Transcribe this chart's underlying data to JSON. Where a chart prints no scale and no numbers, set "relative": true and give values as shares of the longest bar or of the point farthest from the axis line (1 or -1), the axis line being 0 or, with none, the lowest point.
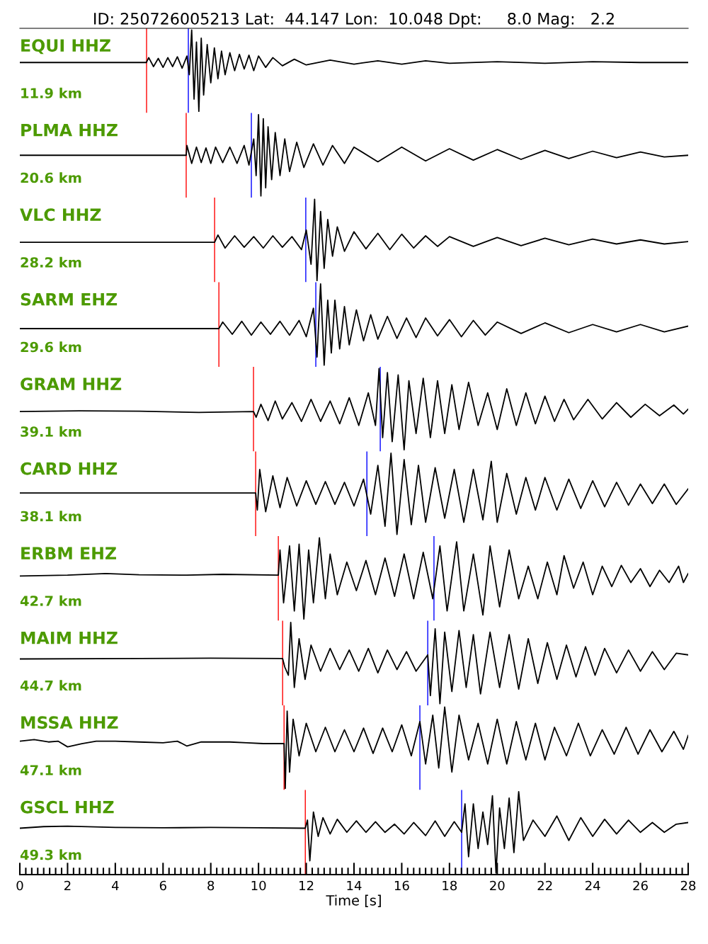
{
  "chart_data": [
    {
      "type": "line",
      "title": "ID: 250726005213 Lat:  44.147 Lon:  10.048 Dpt:     8.0 Mag:   2.2",
      "annotations": [
        "EQUI HHZ",
        "11.9 km"
      ],
      "relative": true,
      "xlim": [
        0,
        28
      ],
      "tick_labels": false,
      "ref_lines": [
        {
          "axis": "x",
          "value": 5.31,
          "color": "#ff0000"
        },
        {
          "axis": "x",
          "value": 7.06,
          "color": "#0000ff"
        }
      ],
      "series": [
        {
          "color": "#000000",
          "x": [
            0,
            5.0,
            5.3,
            5.4,
            5.6,
            5.8,
            6.0,
            6.2,
            6.4,
            6.6,
            6.8,
            7.0,
            7.1,
            7.2,
            7.3,
            7.4,
            7.5,
            7.6,
            7.7,
            7.85,
            8.0,
            8.15,
            8.3,
            8.45,
            8.6,
            8.8,
            9.0,
            9.2,
            9.4,
            9.6,
            9.8,
            10.0,
            10.3,
            10.6,
            11.0,
            11.5,
            12.0,
            13,
            14,
            15,
            16,
            17,
            18,
            20,
            22,
            24,
            26,
            28
          ],
          "values": [
            0.6,
            0.6,
            0.6,
            0.66,
            0.55,
            0.65,
            0.54,
            0.66,
            0.55,
            0.67,
            0.53,
            0.68,
            0.45,
            1.0,
            0.15,
            0.85,
            0.0,
            0.9,
            0.2,
            0.82,
            0.35,
            0.78,
            0.4,
            0.74,
            0.45,
            0.72,
            0.5,
            0.7,
            0.52,
            0.69,
            0.5,
            0.68,
            0.54,
            0.66,
            0.56,
            0.64,
            0.57,
            0.63,
            0.58,
            0.62,
            0.58,
            0.62,
            0.59,
            0.61,
            0.59,
            0.61,
            0.6,
            0.6
          ]
        }
      ]
    },
    {
      "type": "line",
      "annotations": [
        "PLMA HHZ",
        "20.6 km"
      ],
      "relative": true,
      "xlim": [
        0,
        28
      ],
      "tick_labels": false,
      "ref_lines": [
        {
          "axis": "x",
          "value": 6.97,
          "color": "#ff0000"
        },
        {
          "axis": "x",
          "value": 9.7,
          "color": "#0000ff"
        }
      ],
      "series": [
        {
          "color": "#000000",
          "x": [
            0,
            6.97,
            7.0,
            7.2,
            7.4,
            7.6,
            7.8,
            8.0,
            8.2,
            8.5,
            8.8,
            9.1,
            9.4,
            9.6,
            9.8,
            9.9,
            10.0,
            10.1,
            10.2,
            10.3,
            10.4,
            10.55,
            10.7,
            10.9,
            11.1,
            11.3,
            11.6,
            11.9,
            12.3,
            12.7,
            13.1,
            13.6,
            14,
            15,
            16,
            17,
            18,
            19,
            20,
            21,
            22,
            23,
            24,
            25,
            26,
            27,
            28
          ],
          "values": [
            0.5,
            0.5,
            0.62,
            0.4,
            0.6,
            0.41,
            0.59,
            0.4,
            0.6,
            0.41,
            0.6,
            0.4,
            0.62,
            0.38,
            0.7,
            0.25,
            1.0,
            0.0,
            0.95,
            0.1,
            0.85,
            0.2,
            0.78,
            0.25,
            0.7,
            0.3,
            0.66,
            0.35,
            0.64,
            0.38,
            0.62,
            0.4,
            0.6,
            0.42,
            0.6,
            0.43,
            0.58,
            0.44,
            0.57,
            0.45,
            0.56,
            0.46,
            0.55,
            0.47,
            0.54,
            0.48,
            0.5
          ]
        }
      ]
    },
    {
      "type": "line",
      "annotations": [
        "VLC HHZ",
        "28.2 km"
      ],
      "relative": true,
      "xlim": [
        0,
        28
      ],
      "tick_labels": false,
      "ref_lines": [
        {
          "axis": "x",
          "value": 8.16,
          "color": "#ff0000"
        },
        {
          "axis": "x",
          "value": 11.98,
          "color": "#0000ff"
        }
      ],
      "series": [
        {
          "color": "#000000",
          "x": [
            0,
            8.16,
            8.3,
            8.6,
            9.0,
            9.4,
            9.8,
            10.2,
            10.6,
            11.0,
            11.4,
            11.8,
            12.0,
            12.2,
            12.35,
            12.45,
            12.6,
            12.75,
            12.9,
            13.1,
            13.3,
            13.6,
            14,
            14.5,
            15,
            15.5,
            16,
            16.5,
            17,
            17.5,
            18,
            19,
            20,
            21,
            22,
            23,
            24,
            25,
            26,
            27,
            28
          ],
          "values": [
            0.47,
            0.47,
            0.56,
            0.4,
            0.55,
            0.41,
            0.54,
            0.4,
            0.55,
            0.41,
            0.54,
            0.38,
            0.62,
            0.2,
            1.0,
            0.0,
            0.85,
            0.15,
            0.75,
            0.3,
            0.66,
            0.36,
            0.6,
            0.39,
            0.58,
            0.38,
            0.57,
            0.4,
            0.55,
            0.42,
            0.54,
            0.42,
            0.53,
            0.43,
            0.52,
            0.44,
            0.51,
            0.45,
            0.5,
            0.45,
            0.48
          ]
        }
      ]
    },
    {
      "type": "line",
      "annotations": [
        "SARM EHZ",
        "29.6 km"
      ],
      "relative": true,
      "xlim": [
        0,
        28
      ],
      "tick_labels": false,
      "ref_lines": [
        {
          "axis": "x",
          "value": 8.34,
          "color": "#ff0000"
        },
        {
          "axis": "x",
          "value": 12.4,
          "color": "#0000ff"
        }
      ],
      "series": [
        {
          "color": "#000000",
          "x": [
            0,
            8.34,
            8.5,
            8.9,
            9.3,
            9.7,
            10.1,
            10.5,
            10.9,
            11.3,
            11.7,
            12.0,
            12.3,
            12.45,
            12.6,
            12.75,
            12.9,
            13.05,
            13.2,
            13.4,
            13.6,
            13.8,
            14.1,
            14.4,
            14.7,
            15.0,
            15.4,
            15.8,
            16.2,
            16.6,
            17.0,
            17.5,
            18,
            18.5,
            19,
            19.5,
            20,
            21,
            22,
            23,
            24,
            25,
            26,
            27,
            28
          ],
          "values": [
            0.45,
            0.45,
            0.53,
            0.38,
            0.54,
            0.37,
            0.53,
            0.38,
            0.54,
            0.37,
            0.55,
            0.35,
            0.7,
            0.1,
            1.0,
            0.0,
            0.8,
            0.15,
            0.8,
            0.2,
            0.72,
            0.25,
            0.68,
            0.3,
            0.62,
            0.32,
            0.6,
            0.33,
            0.58,
            0.34,
            0.58,
            0.36,
            0.56,
            0.35,
            0.55,
            0.37,
            0.53,
            0.39,
            0.52,
            0.4,
            0.5,
            0.41,
            0.5,
            0.41,
            0.48
          ]
        }
      ]
    },
    {
      "type": "line",
      "annotations": [
        "GRAM HHZ",
        "39.1 km"
      ],
      "relative": true,
      "xlim": [
        0,
        28
      ],
      "tick_labels": false,
      "ref_lines": [
        {
          "axis": "x",
          "value": 9.79,
          "color": "#ff0000"
        },
        {
          "axis": "x",
          "value": 15.1,
          "color": "#0000ff"
        }
      ],
      "series": [
        {
          "color": "#000000",
          "x": [
            0,
            2.5,
            5,
            7.5,
            9.79,
            9.9,
            10.1,
            10.4,
            10.7,
            11.0,
            11.4,
            11.8,
            12.2,
            12.6,
            13.0,
            13.4,
            13.8,
            14.2,
            14.6,
            14.9,
            15.05,
            15.2,
            15.4,
            15.6,
            15.85,
            16.1,
            16.3,
            16.6,
            16.9,
            17.2,
            17.5,
            17.8,
            18.1,
            18.4,
            18.8,
            19.2,
            19.6,
            20.0,
            20.4,
            20.8,
            21.2,
            21.6,
            22.0,
            22.4,
            22.8,
            23.2,
            23.8,
            24.4,
            25.0,
            25.6,
            26.2,
            26.8,
            27.4,
            27.8,
            28
          ],
          "values": [
            0.47,
            0.48,
            0.475,
            0.46,
            0.47,
            0.4,
            0.56,
            0.36,
            0.6,
            0.38,
            0.58,
            0.35,
            0.62,
            0.35,
            0.6,
            0.32,
            0.64,
            0.3,
            0.7,
            0.3,
            1.0,
            0.15,
            0.95,
            0.1,
            0.92,
            0.0,
            0.85,
            0.2,
            0.88,
            0.15,
            0.85,
            0.2,
            0.8,
            0.25,
            0.83,
            0.3,
            0.7,
            0.25,
            0.75,
            0.3,
            0.7,
            0.32,
            0.66,
            0.35,
            0.62,
            0.37,
            0.62,
            0.38,
            0.58,
            0.4,
            0.56,
            0.42,
            0.55,
            0.44,
            0.5
          ]
        }
      ]
    },
    {
      "type": "line",
      "annotations": [
        "CARD HHZ",
        "38.1 km"
      ],
      "relative": true,
      "xlim": [
        0,
        28
      ],
      "tick_labels": false,
      "ref_lines": [
        {
          "axis": "x",
          "value": 9.88,
          "color": "#ff0000"
        },
        {
          "axis": "x",
          "value": 14.54,
          "color": "#0000ff"
        }
      ],
      "series": [
        {
          "color": "#000000",
          "x": [
            0,
            9.88,
            9.95,
            10.05,
            10.3,
            10.6,
            10.9,
            11.2,
            11.6,
            12.0,
            12.4,
            12.8,
            13.2,
            13.6,
            14.0,
            14.4,
            14.7,
            15.0,
            15.3,
            15.55,
            15.8,
            16.1,
            16.4,
            16.7,
            17.0,
            17.4,
            17.8,
            18.2,
            18.6,
            19.0,
            19.4,
            19.75,
            20.0,
            20.4,
            20.8,
            21.2,
            21.6,
            22.0,
            22.5,
            23,
            23.5,
            24,
            24.5,
            25,
            25.5,
            26,
            26.5,
            27,
            27.5,
            28
          ],
          "values": [
            0.51,
            0.51,
            0.3,
            0.8,
            0.28,
            0.72,
            0.33,
            0.7,
            0.35,
            0.66,
            0.37,
            0.65,
            0.37,
            0.64,
            0.35,
            0.68,
            0.25,
            0.85,
            0.1,
            1.0,
            0.0,
            0.92,
            0.12,
            0.85,
            0.15,
            0.82,
            0.2,
            0.8,
            0.15,
            0.8,
            0.18,
            0.9,
            0.15,
            0.75,
            0.25,
            0.7,
            0.3,
            0.7,
            0.3,
            0.68,
            0.32,
            0.66,
            0.34,
            0.64,
            0.36,
            0.62,
            0.38,
            0.62,
            0.37,
            0.56
          ]
        }
      ]
    },
    {
      "type": "line",
      "annotations": [
        "ERBM EHZ",
        "42.7 km"
      ],
      "relative": true,
      "xlim": [
        0,
        28
      ],
      "tick_labels": false,
      "ref_lines": [
        {
          "axis": "x",
          "value": 10.83,
          "color": "#ff0000"
        },
        {
          "axis": "x",
          "value": 17.35,
          "color": "#0000ff"
        }
      ],
      "series": [
        {
          "color": "#000000",
          "x": [
            0,
            2,
            3.6,
            5,
            7,
            8.5,
            10.83,
            10.9,
            11.05,
            11.3,
            11.5,
            11.7,
            11.9,
            12.1,
            12.3,
            12.55,
            12.8,
            13.0,
            13.3,
            13.7,
            14.1,
            14.5,
            14.9,
            15.3,
            15.7,
            16.1,
            16.5,
            16.9,
            17.3,
            17.6,
            17.9,
            18.3,
            18.6,
            19.0,
            19.4,
            19.7,
            20.1,
            20.5,
            20.9,
            21.3,
            21.7,
            22.1,
            22.5,
            22.8,
            23.2,
            23.6,
            24.0,
            24.4,
            24.8,
            25.2,
            25.6,
            26.0,
            26.4,
            26.8,
            27.2,
            27.6,
            27.8,
            28
          ],
          "values": [
            0.53,
            0.54,
            0.56,
            0.545,
            0.54,
            0.55,
            0.54,
            0.85,
            0.2,
            0.9,
            0.1,
            0.92,
            0.0,
            0.85,
            0.2,
            1.0,
            0.25,
            0.8,
            0.3,
            0.7,
            0.35,
            0.72,
            0.3,
            0.75,
            0.28,
            0.8,
            0.25,
            0.82,
            0.25,
            0.9,
            0.1,
            0.95,
            0.1,
            0.8,
            0.05,
            0.9,
            0.15,
            0.85,
            0.25,
            0.65,
            0.25,
            0.7,
            0.3,
            0.78,
            0.38,
            0.7,
            0.3,
            0.65,
            0.4,
            0.66,
            0.45,
            0.62,
            0.4,
            0.6,
            0.45,
            0.65,
            0.45,
            0.56
          ]
        }
      ]
    },
    {
      "type": "line",
      "annotations": [
        "MAIM HHZ",
        "44.7 km"
      ],
      "relative": true,
      "xlim": [
        0,
        28
      ],
      "tick_labels": false,
      "ref_lines": [
        {
          "axis": "x",
          "value": 11.01,
          "color": "#ff0000"
        },
        {
          "axis": "x",
          "value": 17.09,
          "color": "#0000ff"
        }
      ],
      "series": [
        {
          "color": "#000000",
          "x": [
            0,
            5,
            8,
            11.01,
            11.1,
            11.25,
            11.35,
            11.5,
            11.7,
            11.95,
            12.2,
            12.6,
            13.0,
            13.4,
            13.8,
            14.2,
            14.6,
            15.0,
            15.4,
            15.8,
            16.2,
            16.6,
            17.09,
            17.2,
            17.4,
            17.6,
            17.8,
            18.1,
            18.4,
            18.7,
            19.0,
            19.3,
            19.7,
            20.1,
            20.5,
            20.9,
            21.3,
            21.7,
            22.1,
            22.5,
            22.9,
            23.3,
            23.7,
            24.1,
            24.5,
            25,
            25.5,
            26,
            26.5,
            27,
            27.5,
            28
          ],
          "values": [
            0.55,
            0.555,
            0.56,
            0.555,
            0.45,
            0.35,
            1.0,
            0.2,
            0.8,
            0.3,
            0.72,
            0.4,
            0.68,
            0.42,
            0.66,
            0.4,
            0.68,
            0.38,
            0.66,
            0.42,
            0.64,
            0.4,
            0.6,
            0.1,
            0.92,
            0.0,
            0.88,
            0.15,
            0.9,
            0.2,
            0.85,
            0.12,
            0.88,
            0.2,
            0.85,
            0.18,
            0.8,
            0.25,
            0.75,
            0.3,
            0.72,
            0.33,
            0.7,
            0.35,
            0.68,
            0.38,
            0.66,
            0.4,
            0.64,
            0.42,
            0.62,
            0.6
          ]
        }
      ]
    },
    {
      "type": "line",
      "annotations": [
        "MSSA HHZ",
        "47.1 km"
      ],
      "relative": true,
      "xlim": [
        0,
        28
      ],
      "tick_labels": false,
      "ref_lines": [
        {
          "axis": "x",
          "value": 11.07,
          "color": "#ff0000"
        },
        {
          "axis": "x",
          "value": 16.76,
          "color": "#0000ff"
        }
      ],
      "series": [
        {
          "color": "#000000",
          "x": [
            0,
            0.6,
            1.2,
            1.6,
            2.0,
            2.6,
            3.2,
            4,
            5,
            6,
            6.6,
            7.0,
            7.6,
            8.2,
            8.8,
            9.5,
            10.2,
            11.07,
            11.12,
            11.2,
            11.3,
            11.45,
            11.7,
            12.0,
            12.4,
            12.8,
            13.2,
            13.6,
            14,
            14.4,
            14.8,
            15.2,
            15.6,
            16.0,
            16.4,
            16.76,
            17.0,
            17.3,
            17.55,
            17.8,
            18.1,
            18.4,
            18.8,
            19.2,
            19.6,
            20.0,
            20.4,
            20.8,
            21.2,
            21.6,
            22.0,
            22.4,
            22.9,
            23.4,
            23.9,
            24.4,
            24.9,
            25.4,
            25.9,
            26.4,
            26.9,
            27.4,
            27.8,
            28
          ],
          "values": [
            0.58,
            0.6,
            0.57,
            0.58,
            0.51,
            0.55,
            0.58,
            0.58,
            0.57,
            0.56,
            0.58,
            0.52,
            0.57,
            0.57,
            0.57,
            0.56,
            0.55,
            0.55,
            0.0,
            0.95,
            0.2,
            0.85,
            0.4,
            0.8,
            0.45,
            0.75,
            0.45,
            0.72,
            0.45,
            0.74,
            0.43,
            0.74,
            0.45,
            0.78,
            0.4,
            0.82,
            0.3,
            0.9,
            0.25,
            1.0,
            0.2,
            0.9,
            0.35,
            0.8,
            0.3,
            0.85,
            0.3,
            0.82,
            0.35,
            0.8,
            0.35,
            0.75,
            0.4,
            0.8,
            0.4,
            0.72,
            0.42,
            0.75,
            0.42,
            0.72,
            0.45,
            0.7,
            0.48,
            0.65
          ]
        }
      ]
    },
    {
      "type": "line",
      "annotations": [
        "GSCL HHZ",
        "49.3 km"
      ],
      "relative": true,
      "xlim": [
        0,
        28
      ],
      "xticks": [
        0,
        2,
        4,
        6,
        8,
        10,
        12,
        14,
        16,
        18,
        20,
        22,
        24,
        26,
        28
      ],
      "xlabel": "Time [s]",
      "tick_labels": "x",
      "ref_lines": [
        {
          "axis": "x",
          "value": 11.96,
          "color": "#ff0000"
        },
        {
          "axis": "x",
          "value": 18.51,
          "color": "#0000ff"
        }
      ],
      "series": [
        {
          "color": "#000000",
          "x": [
            0,
            1,
            2,
            4,
            6,
            8,
            10,
            11.96,
            12.05,
            12.15,
            12.3,
            12.5,
            12.7,
            13.0,
            13.3,
            13.7,
            14.1,
            14.5,
            14.9,
            15.3,
            15.7,
            16.1,
            16.5,
            17.0,
            17.4,
            17.8,
            18.2,
            18.51,
            18.65,
            18.8,
            19.0,
            19.2,
            19.4,
            19.6,
            19.8,
            19.95,
            20.1,
            20.3,
            20.5,
            20.7,
            20.9,
            21.1,
            21.5,
            22,
            22.5,
            23.0,
            23.5,
            24,
            24.5,
            25,
            25.5,
            26,
            26.5,
            27,
            27.5,
            28
          ],
          "values": [
            0.55,
            0.57,
            0.575,
            0.56,
            0.555,
            0.56,
            0.555,
            0.55,
            0.65,
            0.15,
            0.75,
            0.45,
            0.68,
            0.48,
            0.66,
            0.5,
            0.64,
            0.5,
            0.63,
            0.5,
            0.6,
            0.48,
            0.62,
            0.46,
            0.64,
            0.45,
            0.63,
            0.5,
            0.85,
            0.2,
            0.85,
            0.3,
            0.75,
            0.35,
            0.95,
            0.0,
            0.8,
            0.3,
            0.92,
            0.25,
            1.0,
            0.4,
            0.65,
            0.45,
            0.7,
            0.4,
            0.68,
            0.45,
            0.66,
            0.48,
            0.65,
            0.5,
            0.62,
            0.5,
            0.6,
            0.62
          ]
        }
      ]
    }
  ]
}
